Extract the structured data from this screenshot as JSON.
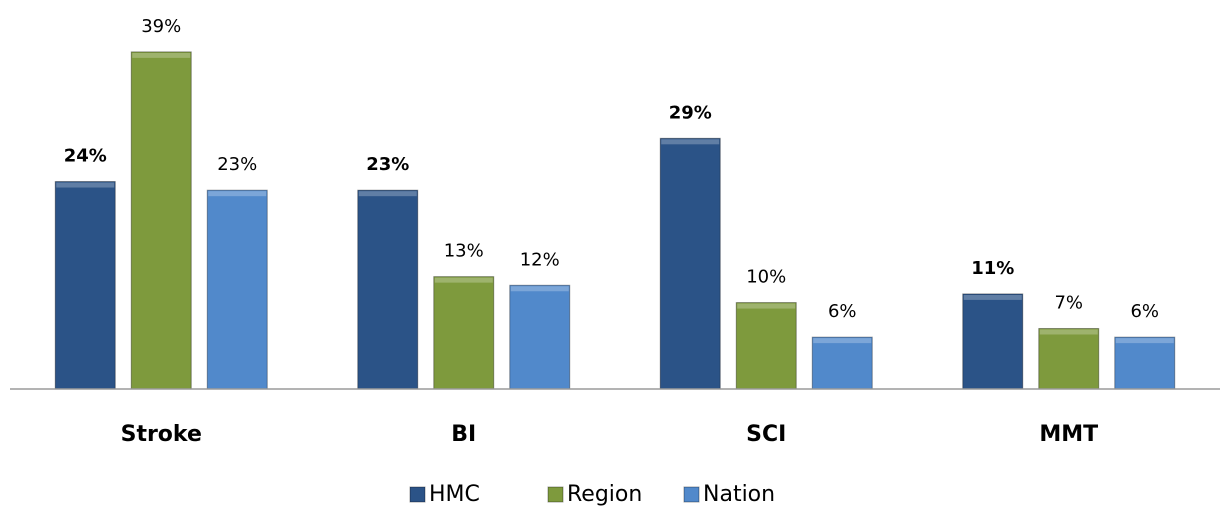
{
  "chart_data": {
    "type": "bar",
    "categories": [
      "Stroke",
      "BI",
      "SCI",
      "MMT"
    ],
    "series": [
      {
        "name": "HMC",
        "color": "#2b5387",
        "label_weight": "bold",
        "values": [
          24,
          23,
          29,
          11
        ],
        "value_labels": [
          "24%",
          "23%",
          "29%",
          "11%"
        ]
      },
      {
        "name": "Region",
        "color": "#7e9a3d",
        "label_weight": "normal",
        "values": [
          39,
          13,
          10,
          7
        ],
        "value_labels": [
          "39%",
          "13%",
          "10%",
          "7%"
        ]
      },
      {
        "name": "Nation",
        "color": "#5189cb",
        "label_weight": "normal",
        "values": [
          23,
          12,
          6,
          6
        ],
        "value_labels": [
          "23%",
          "12%",
          "6%",
          "6%"
        ]
      }
    ],
    "ylim": [
      0,
      45
    ],
    "grid": false,
    "legend": "bottom"
  }
}
